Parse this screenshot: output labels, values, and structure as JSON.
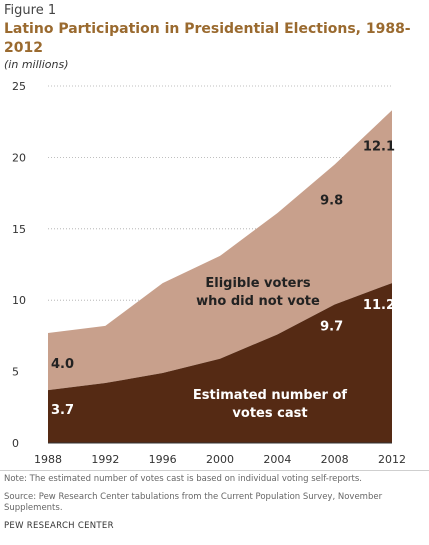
{
  "figure_label": "Figure 1",
  "title": "Latino Participation in Presidential Elections, 1988-2012",
  "subtitle": "(in millions)",
  "note": "Note: The estimated number of votes cast is based on individual voting self-reports.",
  "source": "Source: Pew Research Center tabulations from the Current Population Survey, November Supplements.",
  "organization": "PEW RESEARCH CENTER",
  "colors": {
    "votes_cast": "#552a14",
    "did_not_vote": "#c8a08c",
    "title": "#9a6a2f",
    "grid": "#aaaaaa"
  },
  "chart_data": {
    "type": "area",
    "stacked": true,
    "x": [
      "1988",
      "1992",
      "1996",
      "2000",
      "2004",
      "2008",
      "2012"
    ],
    "ylim": [
      0,
      25
    ],
    "yticks": [
      "0",
      "5",
      "10",
      "15",
      "20",
      "25"
    ],
    "grid": true,
    "series": [
      {
        "name": "Estimated number of votes cast",
        "values": [
          3.7,
          4.2,
          4.9,
          5.9,
          7.6,
          9.7,
          11.2
        ]
      },
      {
        "name": "Eligible voters who did not vote",
        "values": [
          4.0,
          4.0,
          6.3,
          7.2,
          8.5,
          9.8,
          12.1
        ]
      }
    ],
    "data_labels": [
      {
        "series": 0,
        "index": 0,
        "text": "3.7"
      },
      {
        "series": 1,
        "index": 0,
        "text": "4.0"
      },
      {
        "series": 0,
        "index": 5,
        "text": "9.7"
      },
      {
        "series": 1,
        "index": 5,
        "text": "9.8"
      },
      {
        "series": 0,
        "index": 6,
        "text": "11.2"
      },
      {
        "series": 1,
        "index": 6,
        "text": "12.1"
      }
    ],
    "area_labels": {
      "votes_cast": [
        "Estimated number of",
        "votes cast"
      ],
      "did_not_vote": [
        "Eligible voters",
        "who did not vote"
      ]
    }
  }
}
